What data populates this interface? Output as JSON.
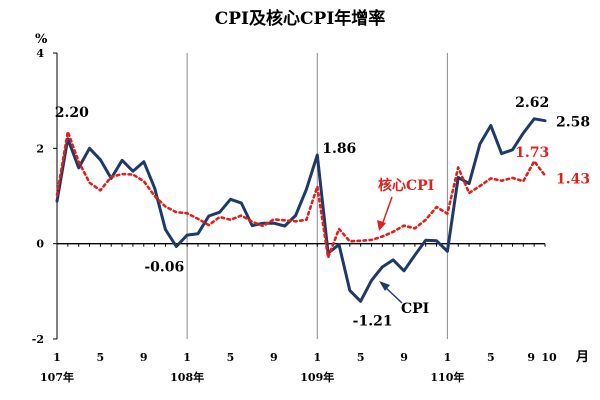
{
  "chart_data": {
    "type": "line",
    "title": "CPI及核心CPI年增率",
    "y_unit": "%",
    "x_unit": "月",
    "ylim": [
      -2,
      4
    ],
    "yticks": [
      "-2",
      "0",
      "2",
      "4"
    ],
    "xtick_labels": [
      "1",
      "5",
      "9",
      "1",
      "5",
      "9",
      "1",
      "5",
      "9",
      "1",
      "5",
      "9",
      "10"
    ],
    "year_labels": [
      "107年",
      "108年",
      "109年",
      "110年"
    ],
    "months": 46,
    "series": [
      {
        "name": "CPI",
        "color": "#1f3a68",
        "values": [
          0.89,
          2.2,
          1.59,
          2.0,
          1.76,
          1.37,
          1.75,
          1.52,
          1.72,
          1.17,
          0.3,
          -0.06,
          0.18,
          0.21,
          0.58,
          0.66,
          0.93,
          0.85,
          0.38,
          0.43,
          0.43,
          0.37,
          0.59,
          1.14,
          1.86,
          -0.2,
          -0.02,
          -0.98,
          -1.21,
          -0.77,
          -0.49,
          -0.34,
          -0.57,
          -0.24,
          0.07,
          0.06,
          -0.16,
          1.39,
          1.26,
          2.09,
          2.48,
          1.89,
          1.97,
          2.32,
          2.62,
          2.58
        ]
      },
      {
        "name": "核心CPI",
        "color": "#e0201b",
        "values": [
          1.02,
          2.35,
          1.72,
          1.28,
          1.12,
          1.4,
          1.46,
          1.45,
          1.31,
          1.0,
          0.78,
          0.66,
          0.64,
          0.52,
          0.39,
          0.56,
          0.5,
          0.59,
          0.46,
          0.37,
          0.51,
          0.49,
          0.47,
          0.5,
          1.2,
          -0.29,
          0.31,
          0.05,
          0.06,
          0.08,
          0.15,
          0.25,
          0.38,
          0.32,
          0.5,
          0.77,
          0.63,
          1.6,
          1.06,
          1.21,
          1.37,
          1.32,
          1.38,
          1.31,
          1.73,
          1.43
        ]
      }
    ],
    "annotations": [
      "2.20",
      "-0.06",
      "1.86",
      "-1.21",
      "2.62",
      "2.58",
      "1.73",
      "1.43"
    ],
    "series_labels": [
      "核心CPI",
      "CPI"
    ],
    "grid": false
  }
}
